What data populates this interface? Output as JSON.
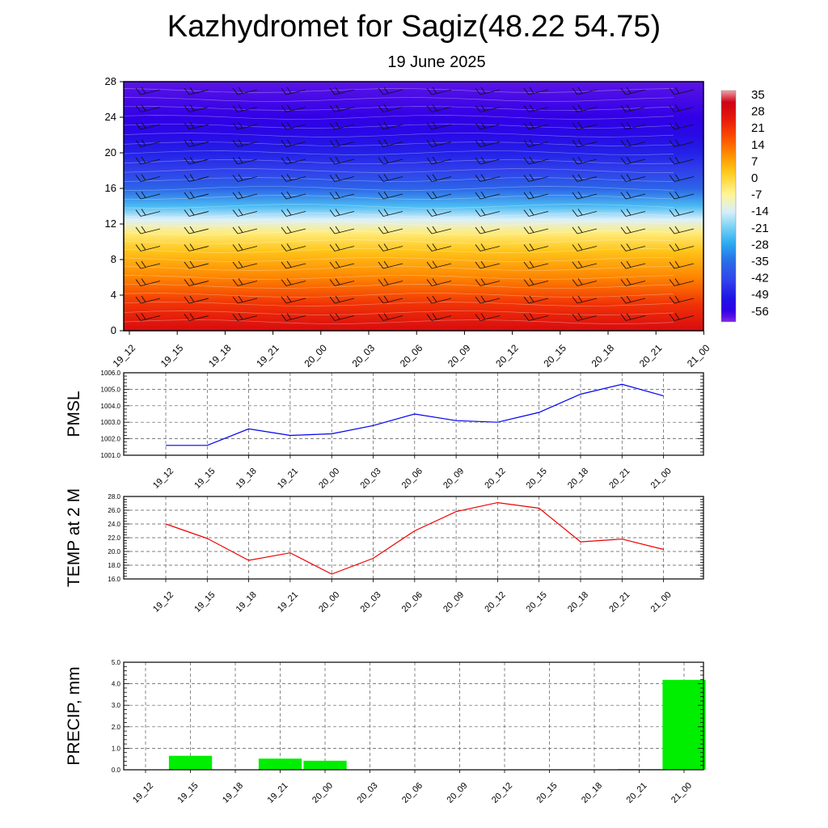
{
  "title": "Kazhydromet for Sagiz(48.22 54.75)",
  "subtitle": "19 June 2025",
  "colors": {
    "pmsl_line": "#0000ee",
    "temp_line": "#ee0000",
    "precip_bar": "#00ee00",
    "grid": "#444444"
  },
  "chart_data": [
    {
      "type": "heatmap",
      "title": "",
      "xlabel": "",
      "ylabel": "",
      "categories": [
        "19_12",
        "19_15",
        "19_18",
        "19_21",
        "20_00",
        "20_03",
        "20_06",
        "20_09",
        "20_12",
        "20_15",
        "20_18",
        "20_21",
        "21_00"
      ],
      "y_ticks": [
        "0",
        "4",
        "8",
        "12",
        "16",
        "20",
        "24",
        "28"
      ],
      "ylim": [
        0,
        28
      ],
      "colorbar_labels": [
        "35",
        "28",
        "21",
        "14",
        "7",
        "0",
        "-7",
        "-14",
        "-21",
        "-28",
        "-35",
        "-42",
        "-49",
        "-56"
      ],
      "zlim": [
        -60,
        38
      ],
      "z_by_height": [
        {
          "height": 0,
          "value": 30
        },
        {
          "height": 3,
          "value": 22
        },
        {
          "height": 6,
          "value": 12
        },
        {
          "height": 9,
          "value": 4
        },
        {
          "height": 11,
          "value": -4
        },
        {
          "height": 12.5,
          "value": -13
        },
        {
          "height": 14,
          "value": -24
        },
        {
          "height": 16,
          "value": -36
        },
        {
          "height": 18,
          "value": -43
        },
        {
          "height": 20,
          "value": -48
        },
        {
          "height": 22,
          "value": -53
        },
        {
          "height": 24,
          "value": -56
        },
        {
          "height": 28,
          "value": -58
        }
      ],
      "overlay": "wind barbs"
    },
    {
      "type": "line",
      "ylabel": "PMSL",
      "categories": [
        "19_12",
        "19_15",
        "19_18",
        "19_21",
        "20_00",
        "20_03",
        "20_06",
        "20_09",
        "20_12",
        "20_15",
        "20_18",
        "20_21",
        "21_00"
      ],
      "y_ticks": [
        "1001.0",
        "1002.0",
        "1003.0",
        "1004.0",
        "1005.0",
        "1006.0"
      ],
      "ylim": [
        1001.0,
        1006.0
      ],
      "series": [
        {
          "values": [
            1001.6,
            1001.6,
            1002.6,
            1002.2,
            1002.3,
            1002.8,
            1003.5,
            1003.1,
            1003.0,
            1003.6,
            1004.7,
            1005.3,
            1004.6
          ]
        }
      ],
      "grid": true
    },
    {
      "type": "line",
      "ylabel": "TEMP at 2 M",
      "categories": [
        "19_12",
        "19_15",
        "19_18",
        "19_21",
        "20_00",
        "20_03",
        "20_06",
        "20_09",
        "20_12",
        "20_15",
        "20_18",
        "20_21",
        "21_00"
      ],
      "y_ticks": [
        "16.0",
        "18.0",
        "20.0",
        "22.0",
        "24.0",
        "26.0",
        "28.0"
      ],
      "ylim": [
        16.0,
        28.0
      ],
      "series": [
        {
          "values": [
            24.0,
            21.9,
            18.7,
            19.8,
            16.7,
            19.0,
            23.0,
            25.8,
            27.1,
            26.3,
            21.4,
            21.8,
            20.3
          ]
        }
      ],
      "grid": true
    },
    {
      "type": "bar",
      "ylabel": "PRECIP, mm",
      "categories": [
        "19_12",
        "19_15",
        "19_18",
        "19_21",
        "20_00",
        "20_03",
        "20_06",
        "20_09",
        "20_12",
        "20_15",
        "20_18",
        "20_21",
        "21_00"
      ],
      "y_ticks": [
        "0.0",
        "1.0",
        "2.0",
        "3.0",
        "4.0",
        "5.0"
      ],
      "ylim": [
        0.0,
        5.0
      ],
      "values": [
        0.0,
        0.65,
        0.0,
        0.52,
        0.42,
        0.0,
        0.0,
        0.0,
        0.0,
        0.0,
        0.0,
        0.03,
        4.18
      ],
      "grid": true
    }
  ]
}
